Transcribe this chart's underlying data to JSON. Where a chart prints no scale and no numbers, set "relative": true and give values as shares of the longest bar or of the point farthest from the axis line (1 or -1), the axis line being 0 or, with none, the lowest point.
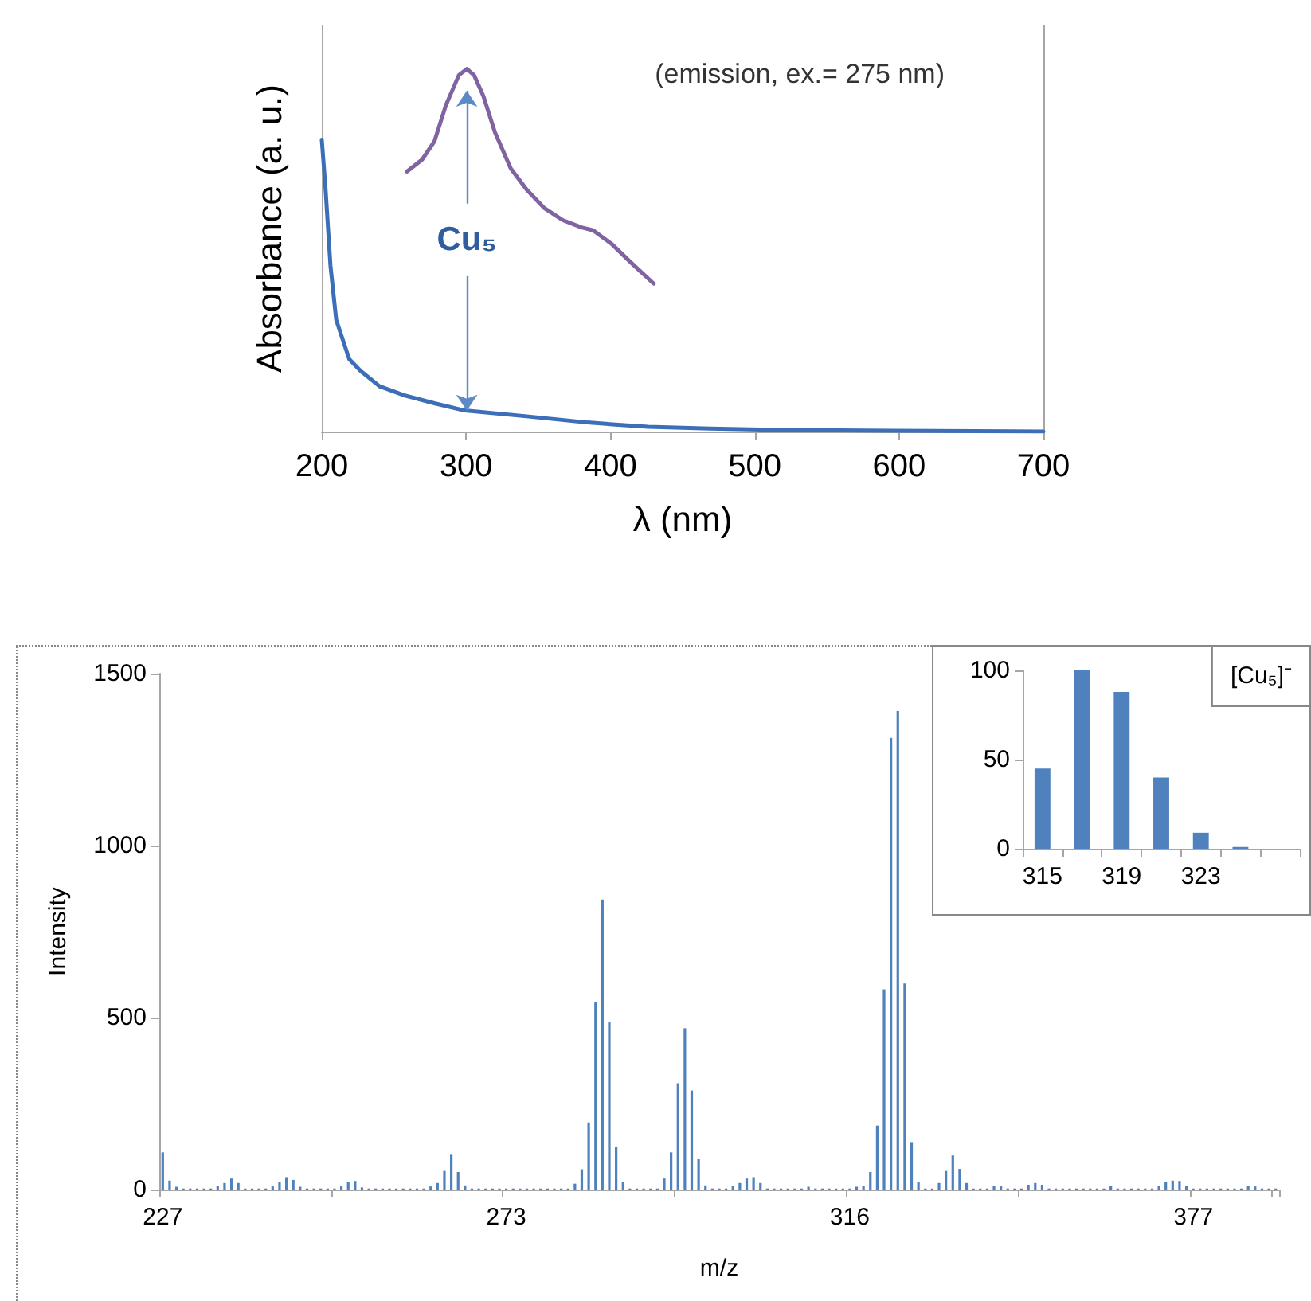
{
  "chart_data": [
    {
      "type": "line",
      "xlabel": "λ (nm)",
      "ylabel": "Absorbance (a. u.)",
      "relative": true,
      "marker": "none",
      "xlim": [
        200,
        700
      ],
      "xticks": [
        200,
        300,
        400,
        500,
        600,
        700
      ],
      "annotations": [
        "(emission, ex.= 275 nm)",
        "Cu₅"
      ],
      "series": [
        {
          "color": "#3c6fb8",
          "x": [
            200,
            202.5,
            206,
            210,
            219,
            227,
            240,
            257,
            278,
            299,
            342,
            384,
            426,
            469,
            511,
            596,
            700
          ],
          "values": [
            0.805,
            0.675,
            0.458,
            0.308,
            0.2,
            0.167,
            0.125,
            0.1,
            0.078,
            0.058,
            0.042,
            0.025,
            0.013,
            0.008,
            0.005,
            0.002,
            0
          ]
        },
        {
          "color": "#8064a2",
          "x": [
            259,
            269.5,
            278,
            286,
            295,
            300.5,
            305.5,
            312,
            320,
            331,
            342,
            354,
            367,
            380,
            388,
            401,
            414,
            430
          ],
          "values": [
            0.717,
            0.75,
            0.8,
            0.9,
            0.983,
            1,
            0.983,
            0.925,
            0.825,
            0.725,
            0.667,
            0.617,
            0.583,
            0.563,
            0.555,
            0.517,
            0.467,
            0.408
          ]
        }
      ]
    },
    {
      "type": "bar",
      "xlabel": "m/z",
      "ylabel": "Intensity",
      "color": "#4f81bd",
      "ylim": [
        0,
        1500
      ],
      "yticks": [
        0,
        500,
        1000,
        1500
      ],
      "categories": [
        "227",
        null,
        null,
        null,
        null,
        null,
        null,
        null,
        null,
        null,
        null,
        null,
        null,
        null,
        null,
        null,
        null,
        null,
        null,
        null,
        null,
        null,
        null,
        null,
        null,
        null,
        null,
        null,
        null,
        null,
        null,
        null,
        null,
        null,
        null,
        null,
        null,
        null,
        null,
        null,
        null,
        null,
        null,
        null,
        null,
        null,
        null,
        null,
        null,
        null,
        "273",
        null,
        null,
        null,
        null,
        null,
        null,
        null,
        null,
        null,
        null,
        null,
        null,
        null,
        null,
        null,
        null,
        null,
        null,
        null,
        null,
        null,
        null,
        null,
        null,
        null,
        null,
        null,
        null,
        null,
        null,
        null,
        null,
        null,
        null,
        null,
        null,
        null,
        null,
        null,
        null,
        null,
        null,
        null,
        null,
        null,
        null,
        null,
        null,
        null,
        "316",
        null,
        null,
        null,
        null,
        null,
        null,
        null,
        null,
        null,
        null,
        null,
        null,
        null,
        null,
        null,
        null,
        null,
        null,
        null,
        null,
        null,
        null,
        null,
        null,
        null,
        null,
        null,
        null,
        null,
        null,
        null,
        null,
        null,
        null,
        null,
        null,
        null,
        null,
        null,
        null,
        null,
        null,
        null,
        null,
        null,
        null,
        null,
        null,
        null,
        "377",
        null,
        null,
        null,
        null,
        null,
        null,
        null,
        null,
        null,
        null,
        null,
        null
      ],
      "values": [
        108,
        26,
        8,
        3,
        3,
        3,
        3,
        3,
        10,
        19,
        32,
        19,
        3,
        3,
        3,
        3,
        9,
        23,
        36,
        28,
        8,
        3,
        3,
        3,
        3,
        3,
        9,
        23,
        25,
        6,
        3,
        3,
        3,
        3,
        3,
        3,
        3,
        3,
        3,
        9,
        19,
        54,
        101,
        51,
        12,
        3,
        3,
        3,
        3,
        3,
        3,
        3,
        3,
        3,
        3,
        3,
        3,
        3,
        3,
        3,
        17,
        59,
        195,
        546,
        843,
        486,
        124,
        23,
        3,
        3,
        3,
        3,
        3,
        32,
        108,
        309,
        469,
        288,
        88,
        12,
        3,
        3,
        3,
        10,
        19,
        32,
        36,
        19,
        3,
        3,
        3,
        3,
        3,
        3,
        8,
        3,
        3,
        3,
        3,
        3,
        3,
        8,
        10,
        51,
        186,
        582,
        1313,
        1391,
        599,
        138,
        23,
        3,
        3,
        19,
        54,
        99,
        60,
        19,
        3,
        3,
        3,
        10,
        9,
        3,
        3,
        3,
        14,
        19,
        14,
        3,
        3,
        3,
        3,
        3,
        3,
        3,
        3,
        3,
        10,
        3,
        3,
        3,
        3,
        3,
        3,
        10,
        23,
        26,
        25,
        10,
        3,
        3,
        3,
        3,
        3,
        3,
        3,
        3,
        10,
        9,
        3,
        3,
        3
      ]
    },
    {
      "type": "bar",
      "title": "[Cu₅]⁻",
      "color": "#4f81bd",
      "ylim": [
        0,
        100
      ],
      "yticks": [
        0,
        50,
        100
      ],
      "categories": [
        "315",
        null,
        "319",
        null,
        "323",
        null,
        null
      ],
      "values": [
        45,
        100,
        88,
        40,
        9,
        1,
        null
      ]
    }
  ]
}
